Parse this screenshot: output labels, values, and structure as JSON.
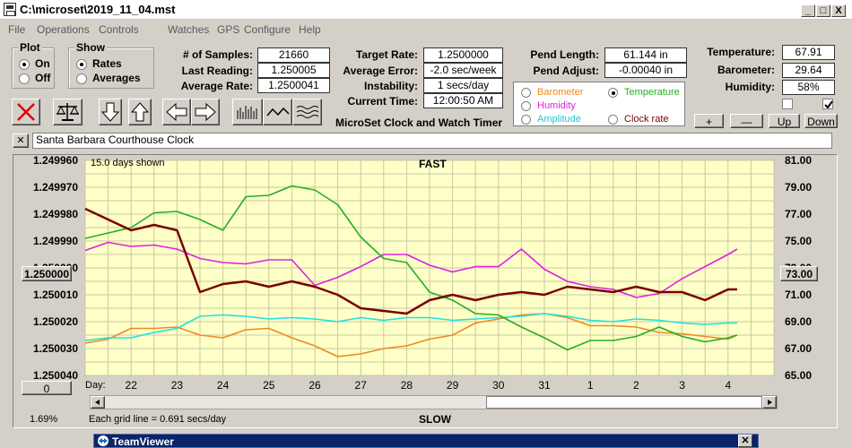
{
  "window": {
    "title": "C:\\microset\\2019_11_04.mst",
    "buttons": [
      "_",
      "□",
      "X"
    ]
  },
  "menu": [
    "File",
    "Operations",
    "Controls",
    "Watches",
    "GPS",
    "Configure",
    "Help"
  ],
  "plot_group": {
    "title": "Plot",
    "options": [
      "On",
      "Off"
    ],
    "selected": "On"
  },
  "show_group": {
    "title": "Show",
    "options": [
      "Rates",
      "Averages"
    ],
    "selected": "Rates"
  },
  "stats": {
    "samples_label": "# of Samples:",
    "samples": "21660",
    "last_reading_label": "Last Reading:",
    "last_reading": "1.250005",
    "avg_rate_label": "Average Rate:",
    "avg_rate": "1.2500041"
  },
  "target": {
    "target_rate_label": "Target Rate:",
    "target_rate": "1.2500000",
    "avg_error_label": "Average Error:",
    "avg_error": "-2.0 sec/week",
    "instability_label": "Instability:",
    "instability": "1 secs/day",
    "current_time_label": "Current Time:",
    "current_time": "12:00:50 AM",
    "app_caption": "MicroSet Clock and Watch Timer"
  },
  "pendulum": {
    "length_label": "Pend Length:",
    "length": "61.144 in",
    "adjust_label": "Pend Adjust:",
    "adjust": "-0.00040 in"
  },
  "sensors": {
    "temperature_label": "Temperature:",
    "temperature": "67.91",
    "barometer_label": "Barometer:",
    "barometer": "29.64",
    "humidity_label": "Humidity:",
    "humidity": "58%",
    "check1": false,
    "check2": true
  },
  "series_select": {
    "barometer": "Barometer",
    "temperature": "Temperature",
    "humidity": "Humidity",
    "amplitude": "Amplitude",
    "clock_rate": "Clock rate",
    "selected": "Temperature"
  },
  "scale_buttons": {
    "plus": "+",
    "minus": "—",
    "up": "Up",
    "down": "Down"
  },
  "clock_name": "Santa Barbara Courthouse Clock",
  "close_x": "✕",
  "chart": {
    "days_shown": "15.0 days shown",
    "fast_label": "FAST",
    "slow_label": "SLOW",
    "grid_note": "Each grid line = 0.691 secs/day",
    "left_readout": "1.250000",
    "right_readout": "73.00",
    "zero_button": "0",
    "percent": "1.69%",
    "day_label": "Day:"
  },
  "taskbar": {
    "title": "TeamViewer"
  },
  "colors": {
    "plot_bg": "#ffffc8",
    "grid": "#c8c8a0",
    "clock_rate": "#7a0000",
    "temperature": "#22b022",
    "humidity": "#e020e0",
    "amplitude": "#20e0e0",
    "barometer": "#ee8a20"
  },
  "chart_data": {
    "type": "line",
    "x_ticks": [
      "22",
      "23",
      "24",
      "25",
      "26",
      "27",
      "28",
      "29",
      "30",
      "31",
      "1",
      "2",
      "3",
      "4"
    ],
    "y_left_ticks": [
      "1.249960",
      "1.249970",
      "1.249980",
      "1.249990",
      "1.250000",
      "1.250010",
      "1.250020",
      "1.250030",
      "1.250040"
    ],
    "y_right_ticks": [
      "81.00",
      "79.00",
      "77.00",
      "75.00",
      "73.00",
      "71.00",
      "69.00",
      "67.00",
      "65.00"
    ],
    "x": [
      21.0,
      21.5,
      22.0,
      22.5,
      23.0,
      23.5,
      24.0,
      24.5,
      25.0,
      25.5,
      26.0,
      26.5,
      27.0,
      27.5,
      28.0,
      28.5,
      29.0,
      29.5,
      30.0,
      30.5,
      31.0,
      31.5,
      32.0,
      32.5,
      33.0,
      33.5,
      34.0,
      34.5,
      35.0,
      35.2
    ],
    "series": [
      {
        "name": "Clock rate",
        "axis": "left",
        "values": [
          1.249978,
          1.249982,
          1.249986,
          1.249984,
          1.249986,
          1.250009,
          1.250006,
          1.250005,
          1.250007,
          1.250005,
          1.250007,
          1.25001,
          1.250015,
          1.250016,
          1.250017,
          1.250012,
          1.25001,
          1.250012,
          1.25001,
          1.250009,
          1.25001,
          1.250007,
          1.250008,
          1.250009,
          1.250007,
          1.250009,
          1.250009,
          1.250012,
          1.250008,
          1.250008
        ]
      },
      {
        "name": "Temperature",
        "axis": "right",
        "values": [
          75.2,
          75.6,
          76.0,
          77.1,
          77.2,
          76.6,
          75.8,
          78.3,
          78.4,
          79.1,
          78.8,
          77.7,
          75.3,
          73.7,
          73.4,
          71.2,
          70.6,
          69.6,
          69.5,
          68.6,
          67.8,
          66.9,
          67.6,
          67.6,
          67.9,
          68.6,
          67.9,
          67.5,
          67.8,
          68.0
        ]
      },
      {
        "name": "Humidity",
        "axis": "right",
        "values": [
          74.3,
          74.9,
          74.6,
          74.7,
          74.4,
          73.7,
          73.4,
          73.3,
          73.6,
          73.6,
          71.7,
          72.3,
          73.1,
          74.0,
          74.0,
          73.2,
          72.7,
          73.1,
          73.1,
          74.4,
          72.9,
          72.0,
          71.6,
          71.4,
          70.8,
          71.1,
          72.2,
          73.1,
          74.0,
          74.4
        ]
      },
      {
        "name": "Amplitude",
        "axis": "right",
        "values": [
          67.6,
          67.8,
          67.8,
          68.2,
          68.5,
          69.4,
          69.5,
          69.4,
          69.2,
          69.3,
          69.2,
          69.0,
          69.3,
          69.1,
          69.3,
          69.3,
          69.1,
          69.2,
          69.3,
          69.4,
          69.6,
          69.4,
          69.1,
          69.0,
          69.2,
          69.1,
          68.9,
          68.8,
          68.9,
          68.9
        ]
      },
      {
        "name": "Barometer",
        "axis": "right",
        "values": [
          67.4,
          67.7,
          68.5,
          68.5,
          68.6,
          68.0,
          67.8,
          68.4,
          68.5,
          67.8,
          67.2,
          66.4,
          66.6,
          67.0,
          67.2,
          67.7,
          68.0,
          68.9,
          69.2,
          69.5,
          69.6,
          69.3,
          68.7,
          68.7,
          68.6,
          68.2,
          68.1,
          67.9,
          67.7,
          68.0
        ]
      }
    ],
    "ylim_left": [
      1.24996,
      1.25004
    ],
    "ylim_right": [
      65.0,
      81.0
    ],
    "grid": true,
    "legend": "none"
  }
}
